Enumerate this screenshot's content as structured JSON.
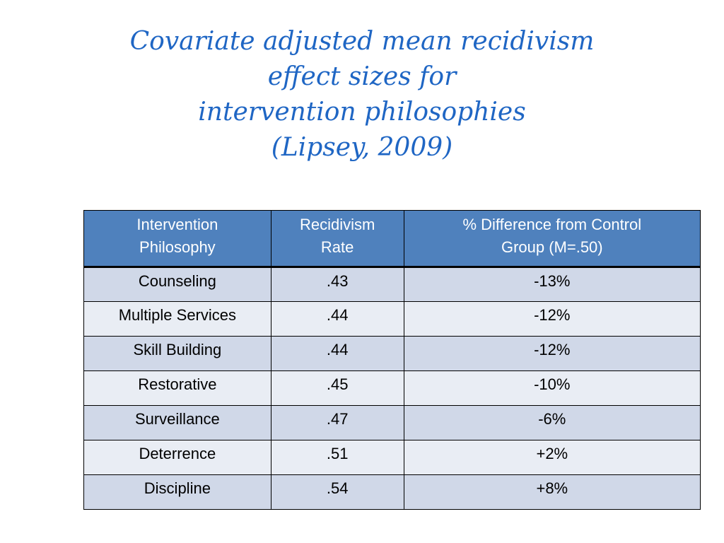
{
  "title_lines": [
    "Covariate adjusted mean recidivism",
    "effect sizes for",
    "intervention philosophies",
    "(Lipsey, 2009)"
  ],
  "table": {
    "headers": [
      [
        "Intervention",
        "Philosophy"
      ],
      [
        "Recidivism",
        "Rate"
      ],
      [
        "% Difference from Control",
        "Group (M=.50)"
      ]
    ],
    "rows": [
      [
        "Counseling",
        ".43",
        "-13%"
      ],
      [
        "Multiple Services",
        ".44",
        "-12%"
      ],
      [
        "Skill Building",
        ".44",
        "-12%"
      ],
      [
        "Restorative",
        ".45",
        "-10%"
      ],
      [
        "Surveillance",
        ".47",
        "-6%"
      ],
      [
        "Deterrence",
        ".51",
        "+2%"
      ],
      [
        "Discipline",
        ".54",
        "+8%"
      ]
    ]
  },
  "colors": {
    "title": "#1f66c4",
    "header_bg": "#4f81bd",
    "row_odd": "#d0d8e8",
    "row_even": "#e9edf4"
  }
}
